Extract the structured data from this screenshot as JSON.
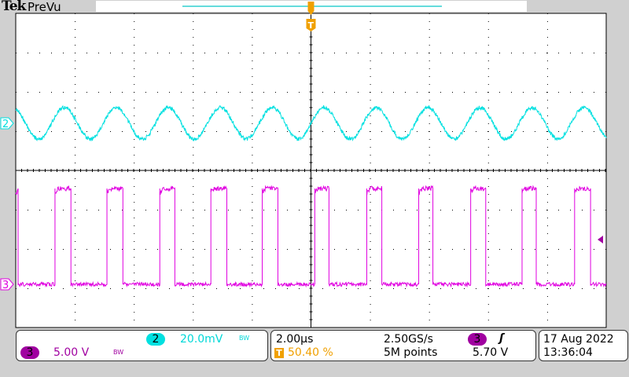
{
  "header": {
    "brand": "Tek",
    "mode": "PreVu"
  },
  "colors": {
    "ch2": "#00e0e0",
    "ch3": "#e000e0",
    "ch3_badge": "#a000a0",
    "trigger": "#f0a000",
    "grid": "#000000"
  },
  "channels": [
    {
      "id": "2",
      "scale": "20.0mV",
      "bw_limit": "BW",
      "color": "#00e0e0"
    },
    {
      "id": "3",
      "scale": "5.00 V",
      "bw_limit": "BW",
      "color": "#e000e0"
    }
  ],
  "timebase": {
    "scale": "2.00µs",
    "trigger_position": "50.40 %",
    "sample_rate": "2.50GS/s",
    "record_length": "5M points"
  },
  "trigger": {
    "source": "3",
    "slope_icon": "rising-edge-icon",
    "level": "5.70 V",
    "marker": "T"
  },
  "datetime": {
    "date": "17 Aug 2022",
    "time": "13:36:04"
  },
  "chart_data": {
    "type": "line",
    "x_unit": "µs",
    "x_div": 2.0,
    "divisions_x": 10,
    "divisions_y": 8,
    "grid": true,
    "series": [
      {
        "name": "2",
        "kind": "sine",
        "volts_per_div": 0.02,
        "offset_div": 1.2,
        "amplitude_v": 0.008,
        "period_us": 1.76,
        "first_trough_us": 0.77
      },
      {
        "name": "3",
        "kind": "square",
        "volts_per_div": 5.0,
        "offset_div": -2.9,
        "low_v": 0,
        "high_v": 12.2,
        "period_us": 1.76,
        "rising_edges_us": [
          1.33,
          3.09,
          4.88,
          6.61,
          8.35,
          10.13,
          11.89,
          13.65,
          15.41,
          17.15,
          18.93
        ],
        "falling_edges_us": [
          1.87,
          3.63,
          5.39,
          7.15,
          8.88,
          10.61,
          12.4,
          14.13,
          15.92,
          17.63,
          19.47
        ]
      }
    ],
    "trigger_level_v": 5.7
  }
}
